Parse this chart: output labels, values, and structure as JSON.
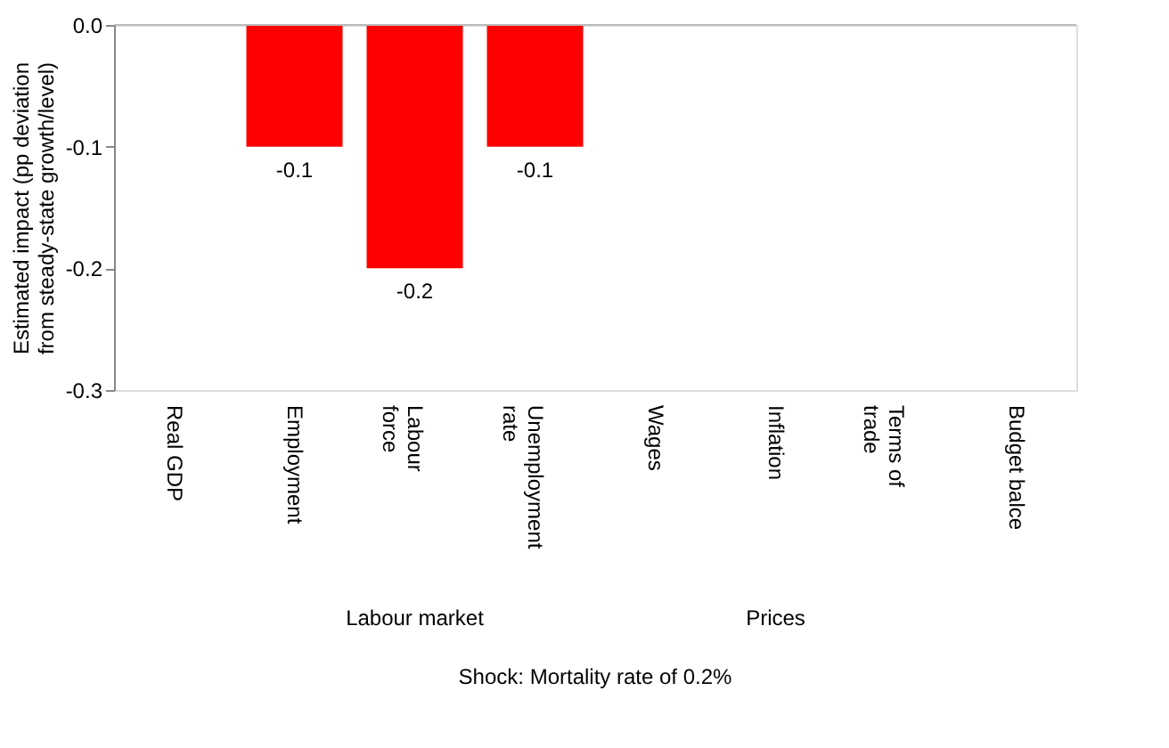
{
  "chart_data": {
    "type": "bar",
    "categories": [
      "Real GDP",
      "Employment",
      "Labour\nforce",
      "Unemployment\nrate",
      "Wages",
      "Inflation",
      "Terms of\ntrade",
      "Budget balce"
    ],
    "values": [
      0,
      -0.1,
      -0.2,
      -0.1,
      0,
      0,
      0,
      0
    ],
    "value_labels": [
      null,
      "-0.1",
      "-0.2",
      "-0.1",
      null,
      null,
      null,
      null
    ],
    "color": "#ff0000",
    "ylabel": "Estimated impact (pp deviation from steady-state growth/level)",
    "ylim": [
      -0.3,
      0
    ],
    "yticks": [
      {
        "value": 0,
        "label": "0.0"
      },
      -0.1,
      -0.2,
      -0.3
    ],
    "grid": false,
    "annotations": [
      "Labour market",
      "Prices",
      "Shock: Mortality rate of 0.2%"
    ]
  }
}
